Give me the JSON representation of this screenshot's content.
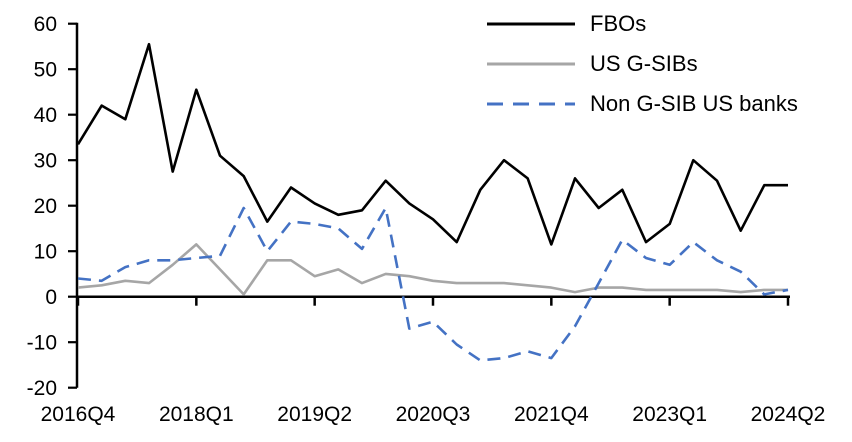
{
  "chart_data": {
    "type": "line",
    "title": "",
    "xlabel": "",
    "ylabel": "",
    "ylim": [
      -20,
      60
    ],
    "y_tick_step": 10,
    "grid": false,
    "legend_position": "top-right",
    "background": "#ffffff",
    "axis_color": "#000000",
    "categories": [
      "2016Q4",
      "2017Q1",
      "2017Q2",
      "2017Q3",
      "2017Q4",
      "2018Q1",
      "2018Q2",
      "2018Q3",
      "2018Q4",
      "2019Q1",
      "2019Q2",
      "2019Q3",
      "2019Q4",
      "2020Q1",
      "2020Q2",
      "2020Q3",
      "2020Q4",
      "2021Q1",
      "2021Q2",
      "2021Q3",
      "2021Q4",
      "2022Q1",
      "2022Q2",
      "2022Q3",
      "2022Q4",
      "2023Q1",
      "2023Q2",
      "2023Q3",
      "2023Q4",
      "2024Q1",
      "2024Q2"
    ],
    "x_tick_every": 5,
    "x_axis_tick_labels": [
      "2016Q4",
      "2018Q1",
      "2019Q2",
      "2020Q3",
      "2021Q4",
      "2023Q1",
      "2024Q2"
    ],
    "series": [
      {
        "name": "FBOs",
        "color": "#000000",
        "style": "solid",
        "values": [
          33.5,
          42,
          39,
          55.5,
          27.5,
          45.5,
          31,
          26.5,
          16.5,
          24,
          20.5,
          18,
          19,
          25.5,
          20.5,
          17,
          12,
          23.5,
          30,
          26,
          11.5,
          26,
          19.5,
          23.5,
          12,
          16,
          30,
          25.5,
          14.5,
          24.5,
          24.5
        ]
      },
      {
        "name": "US G-SIBs",
        "color": "#a6a6a6",
        "style": "solid",
        "values": [
          2,
          2.5,
          3.5,
          3,
          7,
          11.5,
          6,
          0.5,
          8,
          8,
          4.5,
          6,
          3,
          5,
          4.5,
          3.5,
          3,
          3,
          3,
          2.5,
          2,
          1,
          2,
          2,
          1.5,
          1.5,
          1.5,
          1.5,
          1,
          1.5,
          1.5
        ]
      },
      {
        "name": "Non G-SIB US banks",
        "color": "#4472c4",
        "style": "dashed",
        "values": [
          4,
          3.5,
          6.5,
          8,
          8,
          8.5,
          9,
          19.5,
          10,
          16.5,
          16,
          15,
          10.5,
          19.5,
          -7,
          -5.5,
          -10.5,
          -14,
          -13.5,
          -12,
          -13.5,
          -6.5,
          3,
          12.5,
          8.5,
          7,
          12,
          8,
          5.5,
          0.5,
          1.5
        ]
      }
    ]
  }
}
